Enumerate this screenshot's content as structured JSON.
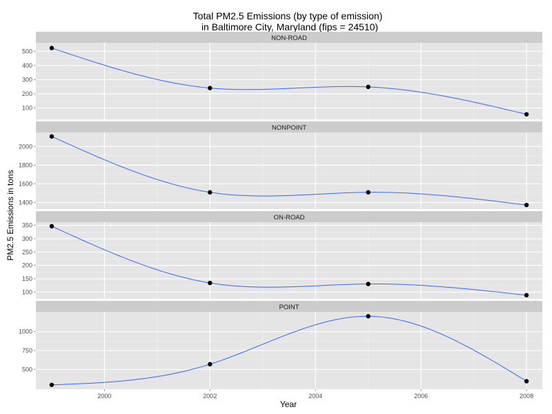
{
  "chart_data": {
    "type": "line",
    "title_lines": [
      "Total PM2.5 Emissions (by type of emission)",
      "in Baltimore City, Maryland (fips = 24510)"
    ],
    "xlabel": "Year",
    "ylabel": "PM2.5 Emissions in tons",
    "xlim": [
      1998.7,
      2008.3
    ],
    "x_ticks": [
      2000,
      2002,
      2004,
      2006,
      2008
    ],
    "x_tick_labels": [
      "2000",
      "2002",
      "2004",
      "2006",
      "2008"
    ],
    "grid": true,
    "colors": {
      "line": "#3366ff",
      "point": "#000000",
      "panel_bg": "#e5e5e5",
      "strip_bg": "#cccccc",
      "grid": "#ffffff"
    },
    "facets": [
      {
        "name": "NON-ROAD",
        "x": [
          1999,
          2002,
          2005,
          2008
        ],
        "y": [
          522.9,
          240.8,
          248.9,
          55.8
        ],
        "ylim": [
          20,
          560
        ],
        "y_ticks": [
          100,
          200,
          300,
          400,
          500
        ],
        "y_tick_labels": [
          "100",
          "200",
          "300",
          "400",
          "500"
        ]
      },
      {
        "name": "NONPOINT",
        "x": [
          1999,
          2002,
          2005,
          2008
        ],
        "y": [
          2107.6,
          1509.5,
          1509.5,
          1373.2
        ],
        "ylim": [
          1330,
          2150
        ],
        "y_ticks": [
          1400,
          1600,
          1800,
          2000
        ],
        "y_tick_labels": [
          "1400",
          "1600",
          "1800",
          "2000"
        ]
      },
      {
        "name": "ON-ROAD",
        "x": [
          1999,
          2002,
          2005,
          2008
        ],
        "y": [
          346.8,
          134.3,
          130.4,
          88.3
        ],
        "ylim": [
          75,
          362
        ],
        "y_ticks": [
          100,
          150,
          200,
          250,
          300,
          350
        ],
        "y_tick_labels": [
          "100",
          "150",
          "200",
          "250",
          "300",
          "350"
        ]
      },
      {
        "name": "POINT",
        "x": [
          1999,
          2002,
          2005,
          2008
        ],
        "y": [
          296.8,
          569.3,
          1202.5,
          344.98
        ],
        "ylim": [
          240,
          1260
        ],
        "y_ticks": [
          500,
          750,
          1000
        ],
        "y_tick_labels": [
          "500",
          "750",
          "1000"
        ]
      }
    ]
  }
}
